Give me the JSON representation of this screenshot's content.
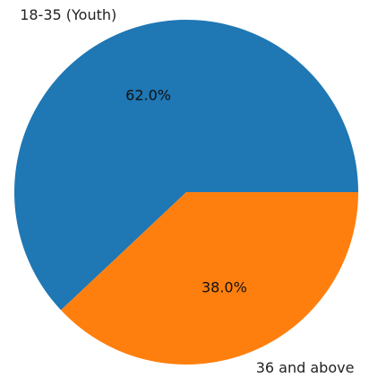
{
  "chart_data": {
    "type": "pie",
    "labels": [
      "18-35 (Youth)",
      "36 and above"
    ],
    "values": [
      62.0,
      38.0
    ],
    "percent_labels": [
      "62.0%",
      "38.0%"
    ],
    "colors": [
      "#1f77b4",
      "#ff7f0e"
    ],
    "start_angle_deg": 0,
    "direction": "counterclockwise"
  }
}
